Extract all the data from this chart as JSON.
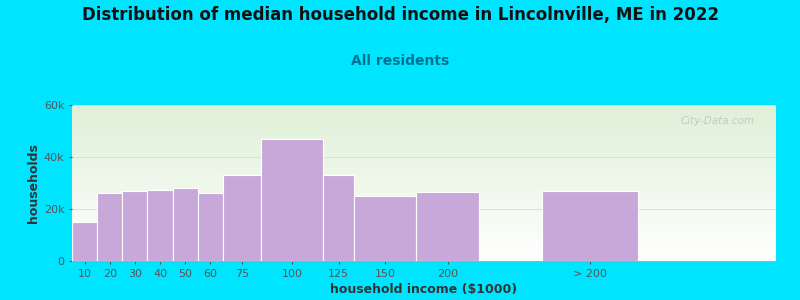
{
  "title": "Distribution of median household income in Lincolnville, ME in 2022",
  "subtitle": "All residents",
  "xlabel": "household income ($1000)",
  "ylabel": "households",
  "bar_lefts": [
    0,
    10,
    20,
    30,
    40,
    50,
    60,
    75,
    100,
    112,
    137,
    187,
    225
  ],
  "bar_widths": [
    10,
    10,
    10,
    10,
    10,
    10,
    15,
    25,
    12,
    25,
    25,
    38,
    50
  ],
  "bar_values": [
    15000,
    26000,
    27000,
    27500,
    28000,
    26000,
    33000,
    47000,
    33000,
    25000,
    26500,
    27000,
    0
  ],
  "xtick_labels": [
    "10",
    "20",
    "30",
    "40",
    "50",
    "60",
    "75",
    "100",
    "125",
    "150",
    "200",
    "> 200",
    ""
  ],
  "bar_color": "#c8a8d8",
  "bar_edge_color": "#ffffff",
  "ylim": [
    0,
    60000
  ],
  "yticks": [
    0,
    20000,
    40000,
    60000
  ],
  "ytick_labels": [
    "0",
    "20k",
    "40k",
    "60k"
  ],
  "bg_outer": "#00e5ff",
  "bg_plot_top": "#dff0d8",
  "bg_plot_bottom": "#ffffff",
  "title_fontsize": 12,
  "subtitle_fontsize": 10,
  "subtitle_color": "#007090",
  "axis_label_fontsize": 9,
  "tick_fontsize": 8,
  "watermark_text": "City-Data.com",
  "grid_color": "#dddddd",
  "xlim": [
    0,
    280
  ]
}
